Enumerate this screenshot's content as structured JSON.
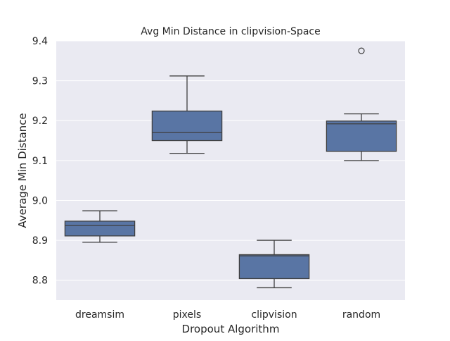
{
  "chart_data": {
    "type": "box",
    "title": "Avg Min Distance in clipvision-Space",
    "xlabel": "Dropout Algorithm",
    "ylabel": "Average Min Distance",
    "categories": [
      "dreamsim",
      "pixels",
      "clipvision",
      "random"
    ],
    "ylim": [
      8.75,
      9.4
    ],
    "yticks": [
      "8.8",
      "8.9",
      "9.0",
      "9.1",
      "9.2",
      "9.3",
      "9.4"
    ],
    "grid": true,
    "box_color": "#5975a4",
    "background_color": "#eaeaf2",
    "boxes": [
      {
        "category": "dreamsim",
        "whisker_low": 8.895,
        "q1": 8.911,
        "median": 8.937,
        "q3": 8.948,
        "whisker_high": 8.974,
        "outliers": []
      },
      {
        "category": "pixels",
        "whisker_low": 9.118,
        "q1": 9.15,
        "median": 9.17,
        "q3": 9.224,
        "whisker_high": 9.312,
        "outliers": []
      },
      {
        "category": "clipvision",
        "whisker_low": 8.781,
        "q1": 8.804,
        "median": 8.861,
        "q3": 8.864,
        "whisker_high": 8.9,
        "outliers": []
      },
      {
        "category": "random",
        "whisker_low": 9.1,
        "q1": 9.123,
        "median": 9.192,
        "q3": 9.199,
        "whisker_high": 9.217,
        "outliers": [
          9.375
        ]
      }
    ]
  }
}
